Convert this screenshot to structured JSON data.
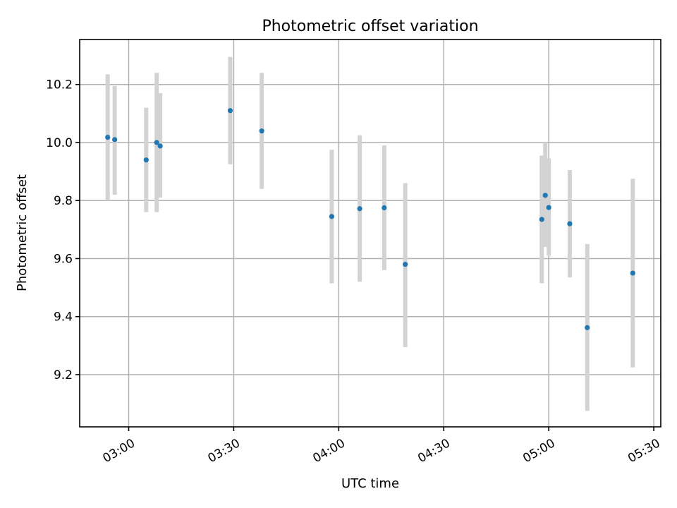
{
  "chart_data": {
    "type": "scatter",
    "title": "Photometric offset variation",
    "xlabel": "UTC time",
    "ylabel": "Photometric offset",
    "xlim": [
      "02:46",
      "05:32"
    ],
    "ylim": [
      9.02,
      10.355
    ],
    "x_ticks": [
      "03:00",
      "03:30",
      "04:00",
      "04:30",
      "05:00",
      "05:30"
    ],
    "y_ticks": [
      "9.2",
      "9.4",
      "9.6",
      "9.8",
      "10.0",
      "10.2"
    ],
    "grid": true,
    "colors": {
      "points": "#1f77b4",
      "errorbars": "#d3d3d3"
    },
    "points": [
      {
        "x": "02:54",
        "y": 10.018,
        "err_low": 9.8,
        "err_high": 10.235
      },
      {
        "x": "02:56",
        "y": 10.01,
        "err_low": 9.82,
        "err_high": 10.195
      },
      {
        "x": "03:05",
        "y": 9.94,
        "err_low": 9.76,
        "err_high": 10.12
      },
      {
        "x": "03:08",
        "y": 10.0,
        "err_low": 9.76,
        "err_high": 10.24
      },
      {
        "x": "03:09",
        "y": 9.988,
        "err_low": 9.81,
        "err_high": 10.17
      },
      {
        "x": "03:29",
        "y": 10.11,
        "err_low": 9.925,
        "err_high": 10.295
      },
      {
        "x": "03:38",
        "y": 10.04,
        "err_low": 9.84,
        "err_high": 10.24
      },
      {
        "x": "03:58",
        "y": 9.745,
        "err_low": 9.515,
        "err_high": 9.975
      },
      {
        "x": "04:06",
        "y": 9.772,
        "err_low": 9.52,
        "err_high": 10.025
      },
      {
        "x": "04:13",
        "y": 9.775,
        "err_low": 9.56,
        "err_high": 9.99
      },
      {
        "x": "04:19",
        "y": 9.58,
        "err_low": 9.295,
        "err_high": 9.86
      },
      {
        "x": "04:58",
        "y": 9.735,
        "err_low": 9.515,
        "err_high": 9.955
      },
      {
        "x": "04:59",
        "y": 9.818,
        "err_low": 9.64,
        "err_high": 10.0
      },
      {
        "x": "05:00",
        "y": 9.776,
        "err_low": 9.61,
        "err_high": 9.945
      },
      {
        "x": "05:06",
        "y": 9.72,
        "err_low": 9.535,
        "err_high": 9.905
      },
      {
        "x": "05:11",
        "y": 9.362,
        "err_low": 9.075,
        "err_high": 9.65
      },
      {
        "x": "05:24",
        "y": 9.55,
        "err_low": 9.225,
        "err_high": 9.875
      }
    ]
  }
}
